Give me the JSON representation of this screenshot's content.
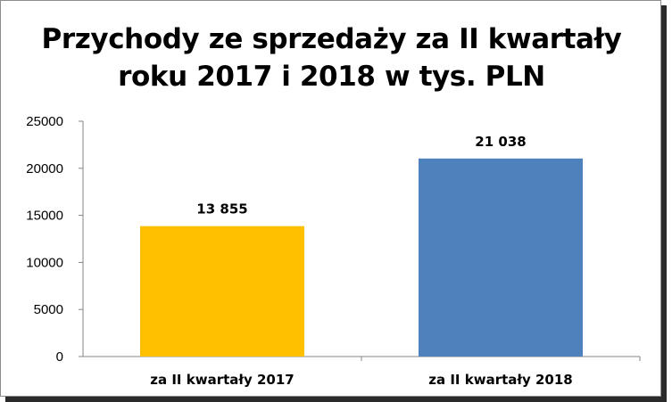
{
  "chart_data": {
    "type": "bar",
    "title_lines": [
      "Przychody ze sprzedaży za II kwartały",
      "roku 2017 i 2018 w tys. PLN"
    ],
    "categories": [
      "za II kwartały 2017",
      "za II kwartały 2018"
    ],
    "values": [
      13855,
      21038
    ],
    "data_labels": [
      "13 855",
      "21 038"
    ],
    "bar_colors": [
      "#FFC000",
      "#4F81BD"
    ],
    "ylim": [
      0,
      25000
    ],
    "yticks": [
      "0",
      "5000",
      "10000",
      "15000",
      "20000",
      "25000"
    ],
    "ytick_values": [
      0,
      5000,
      10000,
      15000,
      20000,
      25000
    ],
    "grid": false,
    "legend": "none"
  }
}
